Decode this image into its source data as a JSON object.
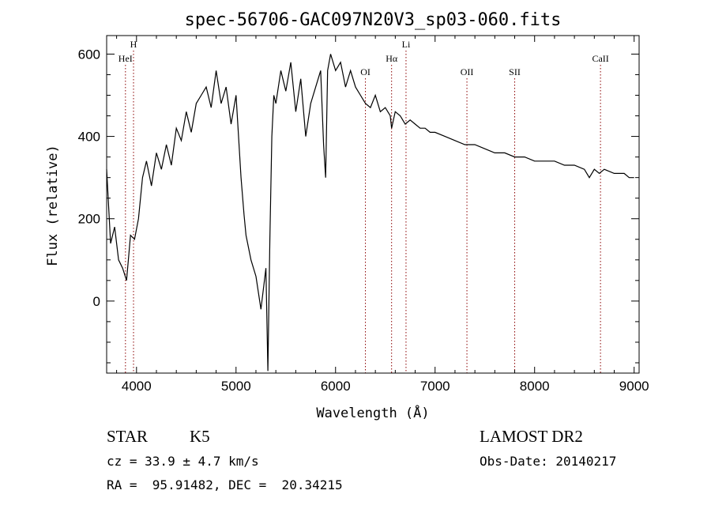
{
  "chart_data": {
    "type": "line",
    "title": "spec-56706-GAC097N20V3_sp03-060.fits",
    "xlabel": "Wavelength (Å)",
    "ylabel": "Flux (relative)",
    "xlim": [
      3700,
      9050
    ],
    "ylim": [
      -175,
      645
    ],
    "x_ticks": [
      4000,
      5000,
      6000,
      7000,
      8000,
      9000
    ],
    "y_ticks": [
      0,
      200,
      400,
      600
    ],
    "grid": false,
    "series": [
      {
        "x": [
          3700,
          3740,
          3780,
          3820,
          3860,
          3900,
          3940,
          3980,
          4020,
          4060,
          4100,
          4150,
          4200,
          4250,
          4300,
          4350,
          4400,
          4450,
          4500,
          4550,
          4600,
          4650,
          4700,
          4750,
          4800,
          4850,
          4900,
          4950,
          5000,
          5050,
          5080,
          5100,
          5150,
          5200,
          5250,
          5300,
          5320,
          5340,
          5360,
          5380,
          5400,
          5450,
          5500,
          5550,
          5600,
          5650,
          5700,
          5750,
          5800,
          5850,
          5880,
          5900,
          5920,
          5950,
          6000,
          6050,
          6100,
          6150,
          6200,
          6250,
          6300,
          6350,
          6400,
          6450,
          6500,
          6550,
          6563,
          6600,
          6650,
          6700,
          6750,
          6800,
          6850,
          6900,
          6950,
          7000,
          7100,
          7200,
          7300,
          7400,
          7500,
          7600,
          7700,
          7800,
          7900,
          8000,
          8100,
          8200,
          8300,
          8400,
          8500,
          8550,
          8600,
          8650,
          8700,
          8800,
          8900,
          8950,
          9000
        ],
        "values": [
          320,
          140,
          180,
          100,
          80,
          50,
          160,
          150,
          200,
          300,
          340,
          280,
          360,
          320,
          380,
          330,
          420,
          390,
          460,
          410,
          480,
          500,
          520,
          470,
          560,
          480,
          520,
          430,
          500,
          300,
          210,
          160,
          100,
          60,
          -20,
          80,
          -170,
          150,
          400,
          500,
          480,
          560,
          510,
          580,
          460,
          540,
          400,
          480,
          520,
          560,
          380,
          300,
          560,
          600,
          560,
          580,
          520,
          560,
          520,
          500,
          480,
          470,
          500,
          460,
          470,
          450,
          420,
          460,
          450,
          430,
          440,
          430,
          420,
          420,
          410,
          410,
          400,
          390,
          380,
          380,
          370,
          360,
          360,
          350,
          350,
          340,
          340,
          340,
          330,
          330,
          320,
          300,
          320,
          310,
          320,
          310,
          310,
          300,
          300
        ]
      }
    ],
    "lines": [
      {
        "label": "HeI",
        "x": 3889,
        "row": 1
      },
      {
        "label": "H",
        "x": 3970,
        "row": 0
      },
      {
        "label": "OI",
        "x": 6300,
        "row": 2
      },
      {
        "label": "Hα",
        "x": 6563,
        "row": 1
      },
      {
        "label": "Li",
        "x": 6708,
        "row": 0
      },
      {
        "label": "OII",
        "x": 7320,
        "row": 2
      },
      {
        "label": "SII",
        "x": 7800,
        "row": 2
      },
      {
        "label": "CaII",
        "x": 8662,
        "row": 1
      }
    ]
  },
  "info": {
    "object_type": "STAR",
    "subclass": "K5",
    "survey": "LAMOST DR2",
    "cz": "cz = 33.9 ± 4.7 km/s",
    "obs_date": "Obs-Date: 20140217",
    "coords": "RA =  95.91482, DEC =  20.34215"
  }
}
